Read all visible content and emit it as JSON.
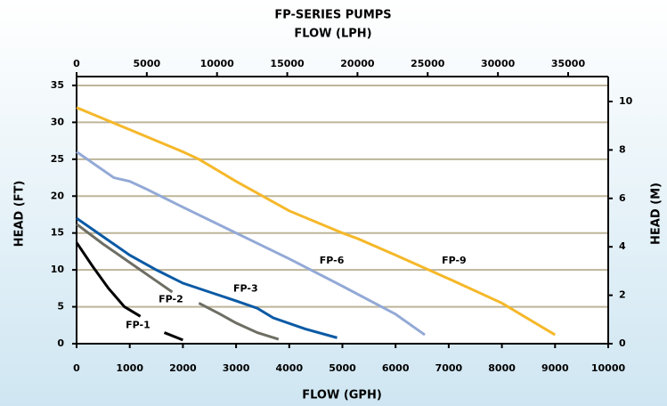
{
  "chart_data": {
    "type": "line",
    "title": "FP-SERIES PUMPS",
    "xlabel": "FLOW (GPH)",
    "x2label": "FLOW (LPH)",
    "ylabel": "HEAD (FT)",
    "y2label": "HEAD (M)",
    "xlim": [
      0,
      10000
    ],
    "xticks": [
      0,
      1000,
      2000,
      3000,
      4000,
      5000,
      6000,
      7000,
      8000,
      9000,
      10000
    ],
    "x2lim": [
      0,
      37854
    ],
    "x2ticks": [
      0,
      5000,
      10000,
      15000,
      20000,
      25000,
      30000,
      35000
    ],
    "ylim": [
      0,
      36.2
    ],
    "yticks": [
      0,
      5,
      10,
      15,
      20,
      25,
      30,
      35
    ],
    "y2lim": [
      0,
      11.03
    ],
    "y2ticks": [
      0,
      2,
      4,
      6,
      8,
      10
    ],
    "grid": true,
    "series": [
      {
        "name": "FP-1",
        "color": "#000000",
        "x": [
          0,
          300,
          600,
          900,
          1200,
          1450,
          1650,
          2000
        ],
        "values": [
          13.7,
          10.5,
          7.5,
          5,
          3.7,
          null,
          1.5,
          0.5
        ]
      },
      {
        "name": "FP-2",
        "color": "#6e6e64",
        "x": [
          0,
          500,
          1000,
          1500,
          1800,
          2050,
          2300,
          2700,
          3000,
          3400,
          3800
        ],
        "values": [
          16.2,
          13.5,
          11,
          8.5,
          7,
          null,
          5.5,
          4,
          2.8,
          1.5,
          0.6
        ]
      },
      {
        "name": "FP-3",
        "color": "#0a5aa5",
        "x": [
          0,
          500,
          1000,
          1500,
          2000,
          2500,
          3000,
          3400,
          3700,
          4300,
          4900
        ],
        "values": [
          17,
          14.5,
          12,
          10,
          8.2,
          7,
          5.8,
          4.8,
          3.5,
          2,
          0.8
        ]
      },
      {
        "name": "FP-6",
        "color": "#93a9d6",
        "x": [
          0,
          700,
          1000,
          1300,
          2000,
          3000,
          4000,
          5000,
          6000,
          6550
        ],
        "values": [
          26,
          22.5,
          22,
          21,
          18.5,
          15,
          11.5,
          7.8,
          4,
          1.2
        ]
      },
      {
        "name": "FP-9",
        "color": "#f5b82a",
        "x": [
          0,
          1000,
          2000,
          2300,
          3000,
          4000,
          5000,
          5300,
          6000,
          7000,
          8000,
          9000
        ],
        "values": [
          32,
          29,
          26,
          25,
          22,
          18,
          15,
          14.2,
          12,
          8.8,
          5.5,
          1.2
        ]
      }
    ]
  }
}
